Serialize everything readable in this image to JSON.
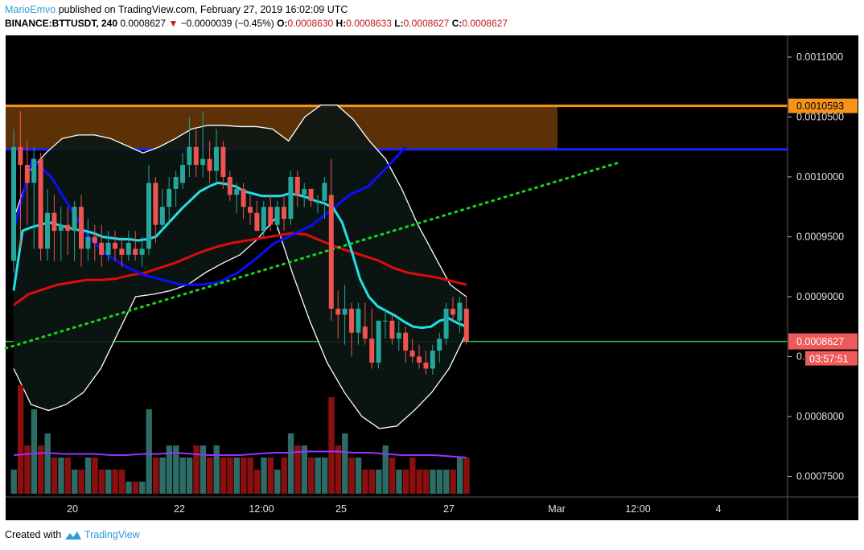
{
  "header": {
    "author": "MarioEmvo",
    "published": "published on TradingView.com, February 27, 2019 16:02:09 UTC",
    "symbol": "BINANCE:BTTUSDT, 240",
    "last": "0.0008627",
    "change": "−0.0000039 (−0.45%)",
    "o_label": "O:",
    "o_value": "0.0008630",
    "h_label": "H:",
    "h_value": "0.0008633",
    "l_label": "L:",
    "l_value": "0.0008627",
    "c_label": "C:",
    "c_value": "0.0008627"
  },
  "footer": {
    "created_with": "Created with",
    "brand": "TradingView"
  },
  "colors": {
    "background": "#000000",
    "bull": "#26a69a",
    "bear": "#ef5350",
    "vol_bull": "#2d6b66",
    "vol_bear": "#8b0f0f",
    "sma_fast": "#22e0e8",
    "sma_slow": "#0a0dff",
    "sma_long": "#e00b0b",
    "bollinger": "#ffffff",
    "volume_ma": "#9b30ff",
    "resistance": "#f7931a",
    "support": "#1e22ff",
    "trendline": "#19d419",
    "price_line": "#3eb84a",
    "price_label": "#f0595b"
  },
  "chart_data": {
    "type": "candlestick",
    "price_axis": {
      "ticks": [
        0.00075,
        0.0008,
        0.00085,
        0.0009,
        0.00095,
        0.001,
        0.00105,
        0.0011
      ],
      "tick_labels": [
        "0.0007500",
        "0.0008000",
        "0.0008500",
        "0.0009000",
        "0.0009500",
        "0.0010000",
        "0.0010500",
        "0.0011000"
      ]
    },
    "time_axis": {
      "labels": [
        "20",
        "22",
        "12:00",
        "25",
        "27",
        "Mar",
        "12:00",
        "4"
      ]
    },
    "last_price": {
      "value": 0.0008627,
      "label": "0.0008627",
      "countdown": "03:57:51"
    },
    "resistance_zone": {
      "top": 0.0010593,
      "bottom": 0.001023,
      "label": "0.0010593"
    },
    "support_line": 0.001023,
    "ascending_trendline": [
      {
        "index": 0,
        "price": 0.000857
      },
      {
        "index": 61,
        "price": 0.001012
      }
    ],
    "candles": [
      {
        "o": 0.00093,
        "h": 0.00104,
        "l": 0.00092,
        "c": 0.001025
      },
      {
        "o": 0.001025,
        "h": 0.001055,
        "l": 0.00094,
        "c": 0.00101
      },
      {
        "o": 0.00101,
        "h": 0.00103,
        "l": 0.00096,
        "c": 0.000995
      },
      {
        "o": 0.000995,
        "h": 0.001025,
        "l": 0.00094,
        "c": 0.001015
      },
      {
        "o": 0.001015,
        "h": 0.00102,
        "l": 0.00093,
        "c": 0.00094
      },
      {
        "o": 0.00094,
        "h": 0.00099,
        "l": 0.00093,
        "c": 0.00097
      },
      {
        "o": 0.00097,
        "h": 0.000985,
        "l": 0.00093,
        "c": 0.000955
      },
      {
        "o": 0.000955,
        "h": 0.000975,
        "l": 0.00093,
        "c": 0.00096
      },
      {
        "o": 0.00096,
        "h": 0.000975,
        "l": 0.000935,
        "c": 0.000955
      },
      {
        "o": 0.000955,
        "h": 0.00098,
        "l": 0.00093,
        "c": 0.000975
      },
      {
        "o": 0.000975,
        "h": 0.000985,
        "l": 0.000925,
        "c": 0.00094
      },
      {
        "o": 0.00094,
        "h": 0.000965,
        "l": 0.00093,
        "c": 0.00095
      },
      {
        "o": 0.00095,
        "h": 0.00096,
        "l": 0.00093,
        "c": 0.000945
      },
      {
        "o": 0.000945,
        "h": 0.00096,
        "l": 0.000925,
        "c": 0.000935
      },
      {
        "o": 0.000935,
        "h": 0.000955,
        "l": 0.00093,
        "c": 0.000945
      },
      {
        "o": 0.000945,
        "h": 0.000955,
        "l": 0.00093,
        "c": 0.00094
      },
      {
        "o": 0.00094,
        "h": 0.00095,
        "l": 0.000925,
        "c": 0.000935
      },
      {
        "o": 0.000935,
        "h": 0.000955,
        "l": 0.00093,
        "c": 0.000945
      },
      {
        "o": 0.00094,
        "h": 0.000955,
        "l": 0.00093,
        "c": 0.000935
      },
      {
        "o": 0.000935,
        "h": 0.00095,
        "l": 0.000925,
        "c": 0.00094
      },
      {
        "o": 0.00094,
        "h": 0.00101,
        "l": 0.000935,
        "c": 0.000995
      },
      {
        "o": 0.000995,
        "h": 0.001,
        "l": 0.000945,
        "c": 0.00096
      },
      {
        "o": 0.00096,
        "h": 0.00099,
        "l": 0.000955,
        "c": 0.000975
      },
      {
        "o": 0.000975,
        "h": 0.001,
        "l": 0.00096,
        "c": 0.00099
      },
      {
        "o": 0.00099,
        "h": 0.001005,
        "l": 0.000975,
        "c": 0.001
      },
      {
        "o": 0.000995,
        "h": 0.00102,
        "l": 0.00099,
        "c": 0.00101
      },
      {
        "o": 0.00101,
        "h": 0.00105,
        "l": 0.001,
        "c": 0.001025
      },
      {
        "o": 0.001025,
        "h": 0.00104,
        "l": 0.001,
        "c": 0.00101
      },
      {
        "o": 0.00101,
        "h": 0.001055,
        "l": 0.001,
        "c": 0.001015
      },
      {
        "o": 0.001015,
        "h": 0.00103,
        "l": 0.000995,
        "c": 0.001005
      },
      {
        "o": 0.001005,
        "h": 0.00104,
        "l": 0.000995,
        "c": 0.001025
      },
      {
        "o": 0.001025,
        "h": 0.00103,
        "l": 0.00099,
        "c": 0.001
      },
      {
        "o": 0.001,
        "h": 0.001005,
        "l": 0.00098,
        "c": 0.000985
      },
      {
        "o": 0.000985,
        "h": 0.000995,
        "l": 0.00097,
        "c": 0.00099
      },
      {
        "o": 0.00099,
        "h": 0.000995,
        "l": 0.000965,
        "c": 0.000975
      },
      {
        "o": 0.000975,
        "h": 0.000985,
        "l": 0.00096,
        "c": 0.00097
      },
      {
        "o": 0.00097,
        "h": 0.00098,
        "l": 0.000955,
        "c": 0.000955
      },
      {
        "o": 0.000955,
        "h": 0.00098,
        "l": 0.00095,
        "c": 0.000975
      },
      {
        "o": 0.000975,
        "h": 0.000985,
        "l": 0.000955,
        "c": 0.00096
      },
      {
        "o": 0.00096,
        "h": 0.00098,
        "l": 0.000955,
        "c": 0.000975
      },
      {
        "o": 0.000975,
        "h": 0.000985,
        "l": 0.000955,
        "c": 0.000965
      },
      {
        "o": 0.000965,
        "h": 0.001005,
        "l": 0.00096,
        "c": 0.001
      },
      {
        "o": 0.001,
        "h": 0.001005,
        "l": 0.000975,
        "c": 0.000985
      },
      {
        "o": 0.000985,
        "h": 0.000995,
        "l": 0.000975,
        "c": 0.00099
      },
      {
        "o": 0.00099,
        "h": 0.00099,
        "l": 0.000975,
        "c": 0.00098
      },
      {
        "o": 0.00098,
        "h": 0.000985,
        "l": 0.00097,
        "c": 0.00098
      },
      {
        "o": 0.00098,
        "h": 0.001,
        "l": 0.000965,
        "c": 0.000995
      },
      {
        "o": 0.000985,
        "h": 0.001015,
        "l": 0.00088,
        "c": 0.00089
      },
      {
        "o": 0.00089,
        "h": 0.000905,
        "l": 0.000865,
        "c": 0.000885
      },
      {
        "o": 0.000885,
        "h": 0.00091,
        "l": 0.00086,
        "c": 0.00089
      },
      {
        "o": 0.00089,
        "h": 0.000895,
        "l": 0.00085,
        "c": 0.00087
      },
      {
        "o": 0.00087,
        "h": 0.000895,
        "l": 0.00086,
        "c": 0.00089
      },
      {
        "o": 0.000875,
        "h": 0.000895,
        "l": 0.00086,
        "c": 0.000865
      },
      {
        "o": 0.000865,
        "h": 0.00089,
        "l": 0.00084,
        "c": 0.000845
      },
      {
        "o": 0.000845,
        "h": 0.00088,
        "l": 0.00084,
        "c": 0.00088
      },
      {
        "o": 0.00088,
        "h": 0.00089,
        "l": 0.000865,
        "c": 0.00088
      },
      {
        "o": 0.00088,
        "h": 0.000885,
        "l": 0.00086,
        "c": 0.000865
      },
      {
        "o": 0.000865,
        "h": 0.00088,
        "l": 0.000855,
        "c": 0.00087
      },
      {
        "o": 0.00087,
        "h": 0.000875,
        "l": 0.000845,
        "c": 0.000855
      },
      {
        "o": 0.000855,
        "h": 0.000865,
        "l": 0.000845,
        "c": 0.00085
      },
      {
        "o": 0.00085,
        "h": 0.00086,
        "l": 0.00084,
        "c": 0.000845
      },
      {
        "o": 0.000845,
        "h": 0.000855,
        "l": 0.000835,
        "c": 0.00084
      },
      {
        "o": 0.00084,
        "h": 0.00086,
        "l": 0.000835,
        "c": 0.000855
      },
      {
        "o": 0.000855,
        "h": 0.00087,
        "l": 0.000845,
        "c": 0.000865
      },
      {
        "o": 0.000865,
        "h": 0.000895,
        "l": 0.00086,
        "c": 0.00089
      },
      {
        "o": 0.00089,
        "h": 0.0009,
        "l": 0.00088,
        "c": 0.000885
      },
      {
        "o": 0.00088,
        "h": 0.0009,
        "l": 0.00087,
        "c": 0.000895
      },
      {
        "o": 0.00089,
        "h": 0.0009,
        "l": 0.00086,
        "c": 0.000863
      }
    ],
    "volume": [
      2,
      9,
      4,
      7,
      4,
      5,
      3,
      3,
      3,
      2,
      2,
      3,
      3,
      2,
      2,
      2,
      2,
      1,
      1,
      1,
      7,
      3,
      3,
      4,
      4,
      3,
      3,
      4,
      4,
      3,
      4,
      3,
      3,
      3,
      3,
      3,
      2,
      3,
      3,
      2,
      3,
      5,
      4,
      4,
      3,
      3,
      3,
      8,
      4,
      5,
      3,
      3,
      2,
      2,
      2,
      4,
      3,
      2,
      2,
      3,
      2,
      2,
      2,
      2,
      2,
      2,
      3,
      3
    ],
    "sma_fast": [
      0.000905,
      0.000955,
      0.000958,
      0.00096,
      0.000962,
      0.00096,
      0.000958,
      0.000956,
      0.000955,
      0.000953,
      0.00095,
      0.000949,
      0.000948,
      0.000948,
      0.000947,
      0.000948,
      0.00095,
      0.000958,
      0.000966,
      0.000974,
      0.000981,
      0.000988,
      0.000992,
      0.000995,
      0.000994,
      0.000992,
      0.000988,
      0.000986,
      0.000984,
      0.000984,
      0.000984,
      0.000986,
      0.000985,
      0.000983,
      0.00098,
      0.000978,
      0.000974,
      0.000962,
      0.00094,
      0.000915,
      0.0009,
      0.000892,
      0.000888,
      0.000884,
      0.000879,
      0.000875,
      0.000874,
      0.000875,
      0.00088,
      0.000882,
      0.000878,
      0.000875
    ],
    "sma_fast_start": 0,
    "bollinger_upper": [
      0.000965,
      0.001005,
      0.00102,
      0.001032,
      0.001035,
      0.001035,
      0.001032,
      0.001026,
      0.00102,
      0.001025,
      0.001032,
      0.00104,
      0.001043,
      0.001043,
      0.001042,
      0.001042,
      0.00104,
      0.00103,
      0.00105,
      0.00106,
      0.00106,
      0.001048,
      0.00103,
      0.001015,
      0.00099,
      0.00096,
      0.000935,
      0.00091,
      0.0009
    ],
    "bollinger_lower": [
      0.00084,
      0.00081,
      0.000805,
      0.00081,
      0.00082,
      0.00084,
      0.00087,
      0.0009,
      0.000902,
      0.000905,
      0.00091,
      0.00092,
      0.000928,
      0.000935,
      0.000948,
      0.000965,
      0.00092,
      0.00088,
      0.000845,
      0.00082,
      0.0008,
      0.00079,
      0.000792,
      0.000805,
      0.00082,
      0.00084,
      0.00087
    ],
    "sma_slow": [
      0.000955,
      0.001015,
      0.001,
      0.000975,
      0.00095,
      0.000935,
      0.000925,
      0.000918,
      0.000914,
      0.00091,
      0.00091,
      0.000912,
      0.00092,
      0.000932,
      0.000945,
      0.000952,
      0.00096,
      0.000972,
      0.000985,
      0.000992,
      0.001008,
      0.001025
    ],
    "sma_long": [
      0.000893,
      0.000902,
      0.000906,
      0.00091,
      0.000912,
      0.000914,
      0.000914,
      0.000915,
      0.000918,
      0.00092,
      0.000924,
      0.000928,
      0.000933,
      0.000938,
      0.000942,
      0.000945,
      0.000947,
      0.000949,
      0.000951,
      0.000953,
      0.000952,
      0.000947,
      0.000942,
      0.000938,
      0.000934,
      0.00093,
      0.000924,
      0.00092,
      0.000918,
      0.000916,
      0.000913,
      0.00091
    ],
    "volume_ma": [
      3.2,
      3.3,
      3.4,
      3.3,
      3.3,
      3.3,
      3.2,
      3.2,
      3.3,
      3.3,
      3.4,
      3.3,
      3.2,
      3.2,
      3.2,
      3.3,
      3.4,
      3.4,
      3.5,
      3.5,
      3.5,
      3.4,
      3.4,
      3.3,
      3.2,
      3.2,
      3.2,
      3.1,
      3.0
    ]
  }
}
